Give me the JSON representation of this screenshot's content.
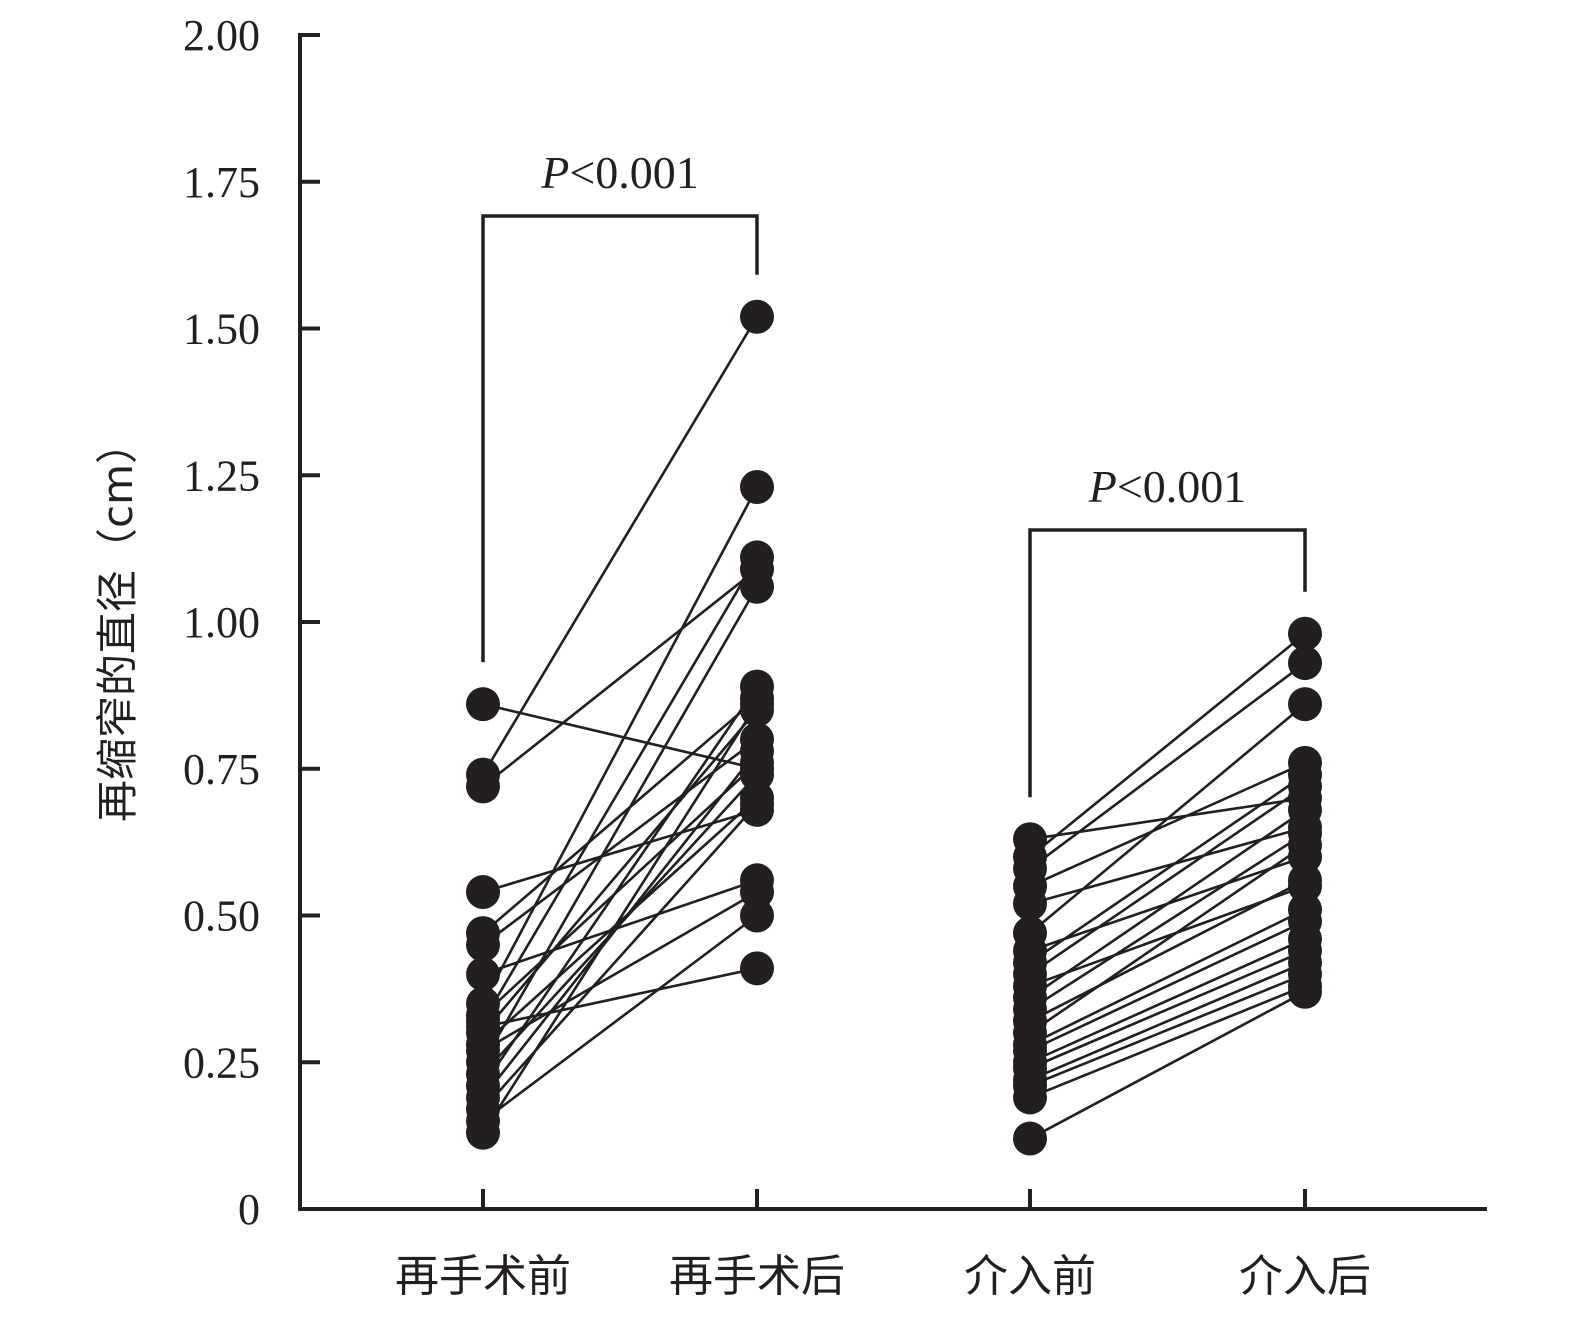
{
  "chart_data": {
    "type": "scatter",
    "ylabel": "再缩窄的直径（cm）",
    "ylim": [
      0,
      2.0
    ],
    "yticks": [
      0,
      0.25,
      0.5,
      0.75,
      1.0,
      1.25,
      1.5,
      1.75,
      2.0
    ],
    "ytick_labels": [
      "0",
      "0.25",
      "0.50",
      "0.75",
      "1.00",
      "1.25",
      "1.50",
      "1.75",
      "2.00"
    ],
    "categories": [
      "再手术前",
      "再手术后",
      "介入前",
      "介入后"
    ],
    "grid": false,
    "groups": [
      {
        "pre": "再手术前",
        "post": "再手术后",
        "annotation": "P<0.001",
        "pairs": [
          [
            0.86,
            0.75
          ],
          [
            0.74,
            1.52
          ],
          [
            0.72,
            1.09
          ],
          [
            0.54,
            0.68
          ],
          [
            0.47,
            0.87
          ],
          [
            0.45,
            0.8
          ],
          [
            0.4,
            0.56
          ],
          [
            0.35,
            1.23
          ],
          [
            0.33,
            0.76
          ],
          [
            0.32,
            1.11
          ],
          [
            0.31,
            0.41
          ],
          [
            0.3,
            0.85
          ],
          [
            0.28,
            0.7
          ],
          [
            0.27,
            0.54
          ],
          [
            0.25,
            1.06
          ],
          [
            0.23,
            0.74
          ],
          [
            0.21,
            0.89
          ],
          [
            0.19,
            0.78
          ],
          [
            0.17,
            0.69
          ],
          [
            0.15,
            0.5
          ],
          [
            0.13,
            0.86
          ]
        ]
      },
      {
        "pre": "介入前",
        "post": "介入后",
        "annotation": "P<0.001",
        "pairs": [
          [
            0.63,
            0.7
          ],
          [
            0.6,
            0.98
          ],
          [
            0.58,
            0.93
          ],
          [
            0.55,
            0.76
          ],
          [
            0.52,
            0.65
          ],
          [
            0.47,
            0.86
          ],
          [
            0.44,
            0.6
          ],
          [
            0.42,
            0.74
          ],
          [
            0.4,
            0.72
          ],
          [
            0.38,
            0.55
          ],
          [
            0.36,
            0.68
          ],
          [
            0.34,
            0.64
          ],
          [
            0.32,
            0.56
          ],
          [
            0.3,
            0.62
          ],
          [
            0.28,
            0.51
          ],
          [
            0.27,
            0.49
          ],
          [
            0.25,
            0.46
          ],
          [
            0.24,
            0.44
          ],
          [
            0.22,
            0.42
          ],
          [
            0.21,
            0.4
          ],
          [
            0.19,
            0.38
          ],
          [
            0.12,
            0.37
          ]
        ]
      }
    ]
  },
  "colors": {
    "ink": "#231f20",
    "background": "#ffffff"
  }
}
